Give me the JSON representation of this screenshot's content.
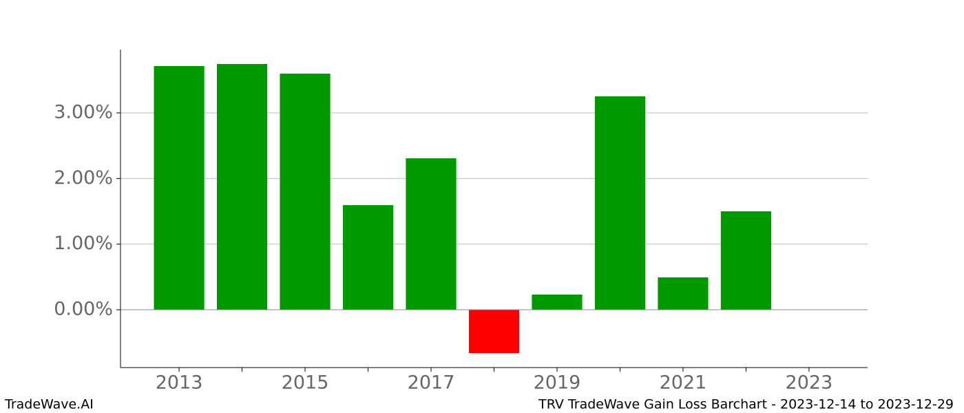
{
  "chart_data": {
    "type": "bar",
    "x": [
      2013,
      2014,
      2015,
      2016,
      2017,
      2018,
      2019,
      2020,
      2021,
      2022
    ],
    "values": [
      3.713,
      3.745,
      3.598,
      1.594,
      2.308,
      -0.661,
      0.231,
      3.252,
      0.493,
      1.5
    ],
    "color": "#009900",
    "negative_color": "#ff0000",
    "bar_width": 0.8,
    "xlim": [
      2012.07,
      2023.93
    ],
    "xticks": [
      2013,
      2015,
      2017,
      2019,
      2021,
      2023
    ],
    "xminor_ticks": [
      2014,
      2016,
      2018,
      2020,
      2022
    ],
    "ylim": [
      -0.881,
      3.965
    ],
    "yticks": [
      {
        "value": 0,
        "label": "0.00%"
      },
      {
        "value": 1,
        "label": "1.00%"
      },
      {
        "value": 2,
        "label": "2.00%"
      },
      {
        "value": 3,
        "label": "3.00%"
      }
    ],
    "grid": true,
    "footer_left": "TradeWave.AI",
    "footer_right": "TRV TradeWave Gain Loss Barchart - 2023-12-14 to 2023-12-29"
  }
}
